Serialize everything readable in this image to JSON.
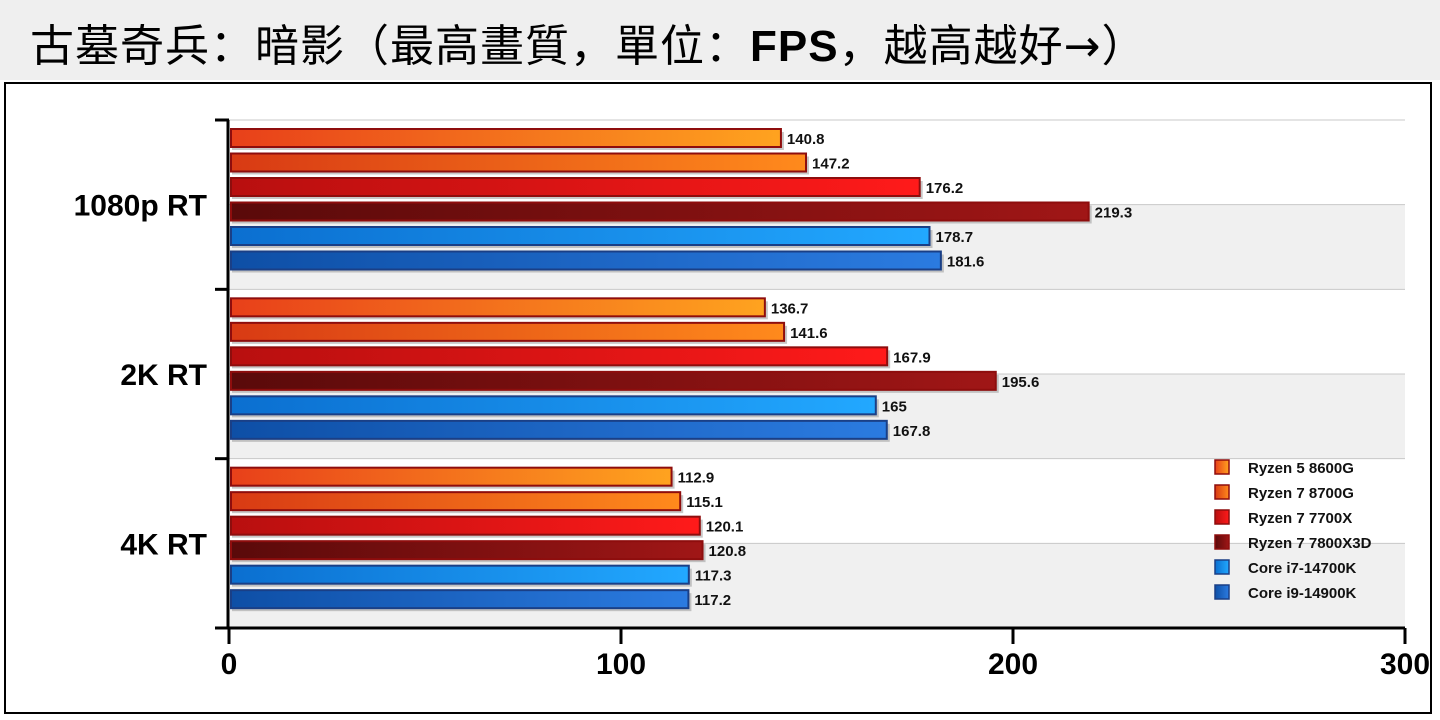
{
  "title": {
    "prefix": "古墓奇兵：暗影（最高畫質，單位：",
    "unit": "FPS",
    "suffix": "，越高越好→）"
  },
  "colors": {
    "ryzen5": [
      "#e8401a",
      "#ffa31f"
    ],
    "ryzen7_8700g": [
      "#d83a14",
      "#ff8a1c"
    ],
    "ryzen7_7700x": [
      "#b80f0f",
      "#ff1a1a"
    ],
    "ryzen7_7800x3d": [
      "#5a0a0a",
      "#a01616"
    ],
    "i7": [
      "#0b6fd0",
      "#22a8ff"
    ],
    "i9": [
      "#0e4fa6",
      "#2b7be0"
    ]
  },
  "chart_data": {
    "type": "bar",
    "orientation": "horizontal",
    "categories": [
      "1080p RT",
      "2K RT",
      "4K RT"
    ],
    "series": [
      {
        "name": "Ryzen 5 8600G",
        "values": [
          140.8,
          136.7,
          112.9
        ],
        "labels": [
          "140.8",
          "136.7",
          "112.9"
        ]
      },
      {
        "name": "Ryzen 7 8700G",
        "values": [
          147.2,
          141.6,
          115.1
        ],
        "labels": [
          "147.2",
          "141.6",
          "115.1"
        ]
      },
      {
        "name": "Ryzen 7 7700X",
        "values": [
          176.2,
          167.9,
          120.1
        ],
        "labels": [
          "176.2",
          "167.9",
          "120.1"
        ]
      },
      {
        "name": "Ryzen 7 7800X3D",
        "values": [
          219.3,
          195.6,
          120.8
        ],
        "labels": [
          "219.3",
          "195.6",
          "120.8"
        ]
      },
      {
        "name": "Core i7-14700K",
        "values": [
          178.7,
          165,
          117.3
        ],
        "labels": [
          "178.7",
          "165",
          "117.3"
        ]
      },
      {
        "name": "Core i9-14900K",
        "values": [
          181.6,
          167.8,
          117.2
        ],
        "labels": [
          "181.6",
          "167.8",
          "117.2"
        ]
      }
    ],
    "xlim": [
      0,
      300
    ],
    "xticks": [
      0,
      100,
      200,
      300
    ],
    "xtick_labels": [
      "0",
      "100",
      "200",
      "300"
    ],
    "legend_position": "bottom-right",
    "grid": true
  }
}
